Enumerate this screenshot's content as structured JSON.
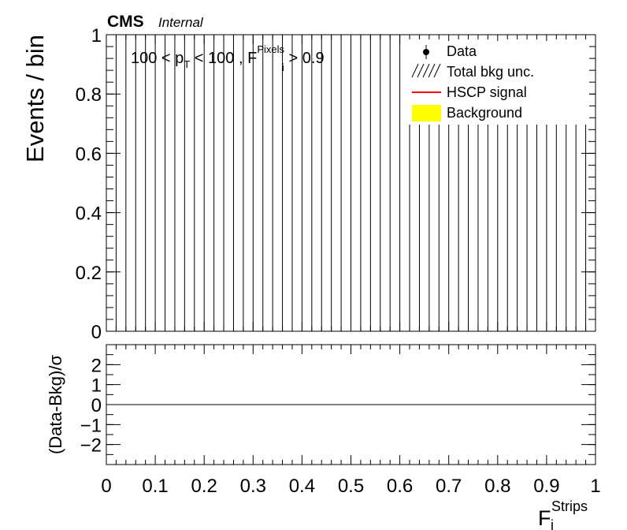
{
  "chart_data": [
    {
      "type": "bar",
      "panel": "main",
      "header": {
        "experiment": "CMS",
        "status": "Internal"
      },
      "annotation": {
        "pt_low": "100",
        "pt_high": "100",
        "pixels_label": "F",
        "pixels_sub": "i",
        "pixels_sup": "Pixels",
        "pixels_cut": "0.9"
      },
      "ylabel": "Events / bin",
      "xlim": [
        0,
        1
      ],
      "ylim": [
        0,
        1
      ],
      "y_ticks": [
        "0",
        "0.2",
        "0.4",
        "0.6",
        "0.8",
        "1"
      ],
      "y_tick_values": [
        0,
        0.2,
        0.4,
        0.6,
        0.8,
        1
      ],
      "bins": 50,
      "series": [
        {
          "name": "Data",
          "values": []
        },
        {
          "name": "Total bkg unc.",
          "values": []
        },
        {
          "name": "HSCP signal",
          "values": []
        },
        {
          "name": "Background",
          "values": []
        }
      ],
      "legend": {
        "placement": "top-right",
        "entries": [
          {
            "label": "Data",
            "symbol": "marker"
          },
          {
            "label": "Total bkg unc.",
            "symbol": "hatch"
          },
          {
            "label": "HSCP signal",
            "symbol": "line",
            "color": "#ff0000"
          },
          {
            "label": "Background",
            "symbol": "fill",
            "color": "#ffff00"
          }
        ]
      },
      "grid": false
    },
    {
      "type": "line",
      "panel": "ratio",
      "ylabel": "(Data-Bkg)/σ",
      "xlabel_main": "F",
      "xlabel_sub": "i",
      "xlabel_sup": "Strips",
      "xlim": [
        0,
        1
      ],
      "ylim": [
        -3,
        3
      ],
      "x_ticks": [
        "0",
        "0.1",
        "0.2",
        "0.3",
        "0.4",
        "0.5",
        "0.6",
        "0.7",
        "0.8",
        "0.9",
        "1"
      ],
      "x_tick_values": [
        0,
        0.1,
        0.2,
        0.3,
        0.4,
        0.5,
        0.6,
        0.7,
        0.8,
        0.9,
        1
      ],
      "y_ticks": [
        "−2",
        "−1",
        "0",
        "1",
        "2"
      ],
      "y_tick_values": [
        -2,
        -1,
        0,
        1,
        2
      ],
      "reference_line": 0,
      "series": []
    }
  ]
}
